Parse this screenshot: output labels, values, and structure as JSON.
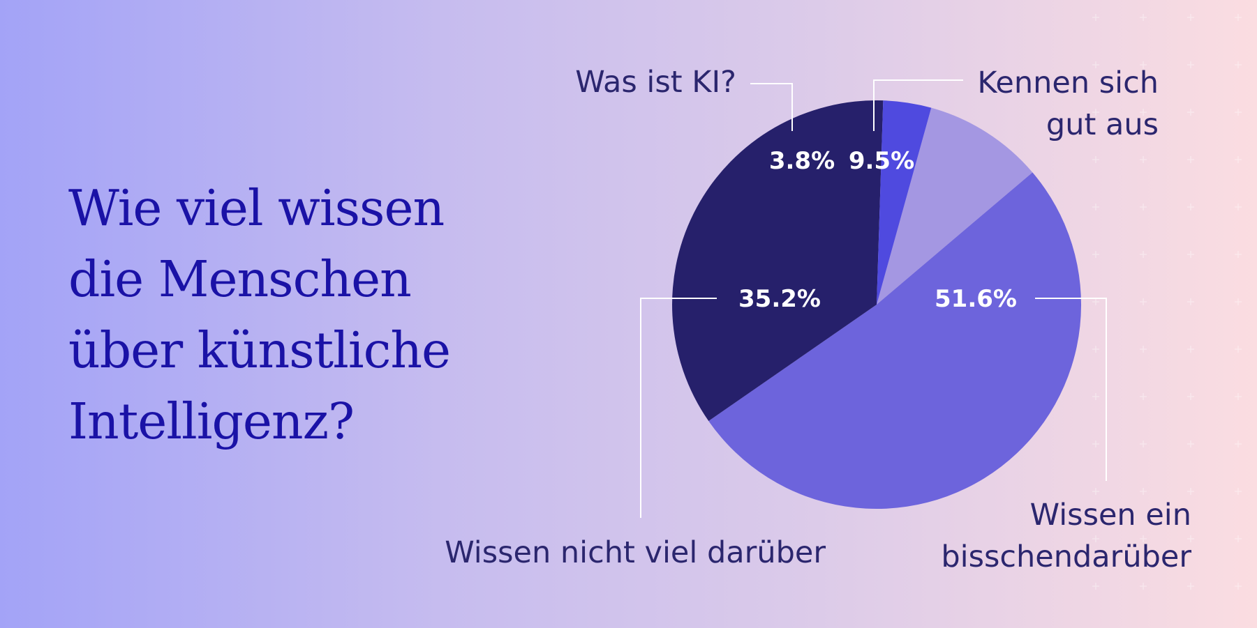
{
  "title_lines": [
    "Wie viel wissen",
    "die Menschen",
    "über künstliche",
    "Intelligenz?"
  ],
  "colors": {
    "title": "#1a12a6",
    "label": "#2b266e",
    "percent_label": "#ffffff"
  },
  "chart_data": {
    "type": "pie",
    "title": "Wie viel wissen die Menschen über künstliche Intelligenz?",
    "unit": "%",
    "slices": [
      {
        "value": 9.5,
        "display": "9.5%",
        "label": [
          "Kennen sich",
          "gut aus"
        ],
        "color": "#a497e2"
      },
      {
        "value": 51.6,
        "display": "51.6%",
        "label": [
          "Wissen ein",
          "bisschendarüber"
        ],
        "color": "#6d64dc"
      },
      {
        "value": 35.2,
        "display": "35.2%",
        "label": [
          "Wissen nicht viel darüber"
        ],
        "color": "#26206b"
      },
      {
        "value": 3.8,
        "display": "3.8%",
        "label": [
          "Was ist KI?"
        ],
        "color": "#4f4adf"
      }
    ],
    "legend": "none"
  }
}
